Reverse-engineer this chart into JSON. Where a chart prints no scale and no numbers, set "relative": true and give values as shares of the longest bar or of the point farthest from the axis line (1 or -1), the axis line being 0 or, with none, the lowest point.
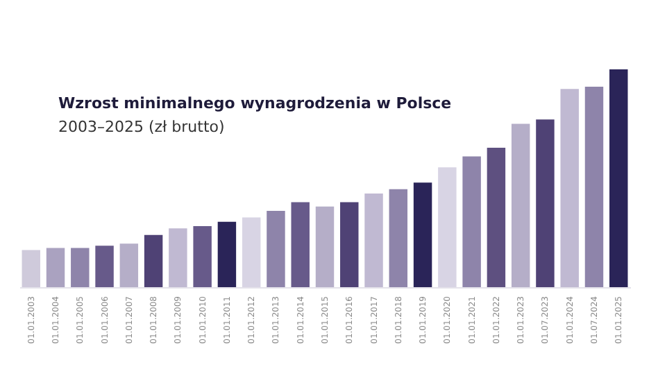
{
  "chart_data": {
    "type": "bar",
    "title": "Wzrost minimalnego wynagrodzenia w Polsce",
    "subtitle": "2003–2025 (zł brutto)",
    "relative": true,
    "categories": [
      "01.01.2003",
      "01.01.2004",
      "01.01.2005",
      "01.01.2006",
      "01.01.2007",
      "01.01.2008",
      "01.01.2009",
      "01.01.2010",
      "01.01.2011",
      "01.01.2012",
      "01.01.2013",
      "01.01.2014",
      "01.01.2015",
      "01.01.2016",
      "01.01.2017",
      "01.01.2018",
      "01.01.2019",
      "01.01.2020",
      "01.01.2021",
      "01.01.2022",
      "01.01.2023",
      "01.07.2023",
      "01.01.2024",
      "01.07.2024",
      "01.01.2025"
    ],
    "values": [
      0.17,
      0.18,
      0.18,
      0.19,
      0.2,
      0.24,
      0.27,
      0.28,
      0.3,
      0.32,
      0.35,
      0.39,
      0.37,
      0.39,
      0.43,
      0.45,
      0.48,
      0.55,
      0.6,
      0.64,
      0.75,
      0.77,
      0.91,
      0.92,
      1
    ],
    "colors": [
      "#cfcadb",
      "#aaa2c0",
      "#8e84aa",
      "#675a8a",
      "#b5aec8",
      "#4f4275",
      "#c0b9d2",
      "#675a8a",
      "#2a2458",
      "#d8d4e4",
      "#8e84aa",
      "#675a8a",
      "#b5aec8",
      "#4f4275",
      "#c0b9d2",
      "#8e84aa",
      "#2a2458",
      "#d8d4e4",
      "#8e84aa",
      "#5e5080",
      "#b5aec8",
      "#4f4275",
      "#c0b9d2",
      "#8e84aa",
      "#2a2458"
    ],
    "legend": false
  }
}
